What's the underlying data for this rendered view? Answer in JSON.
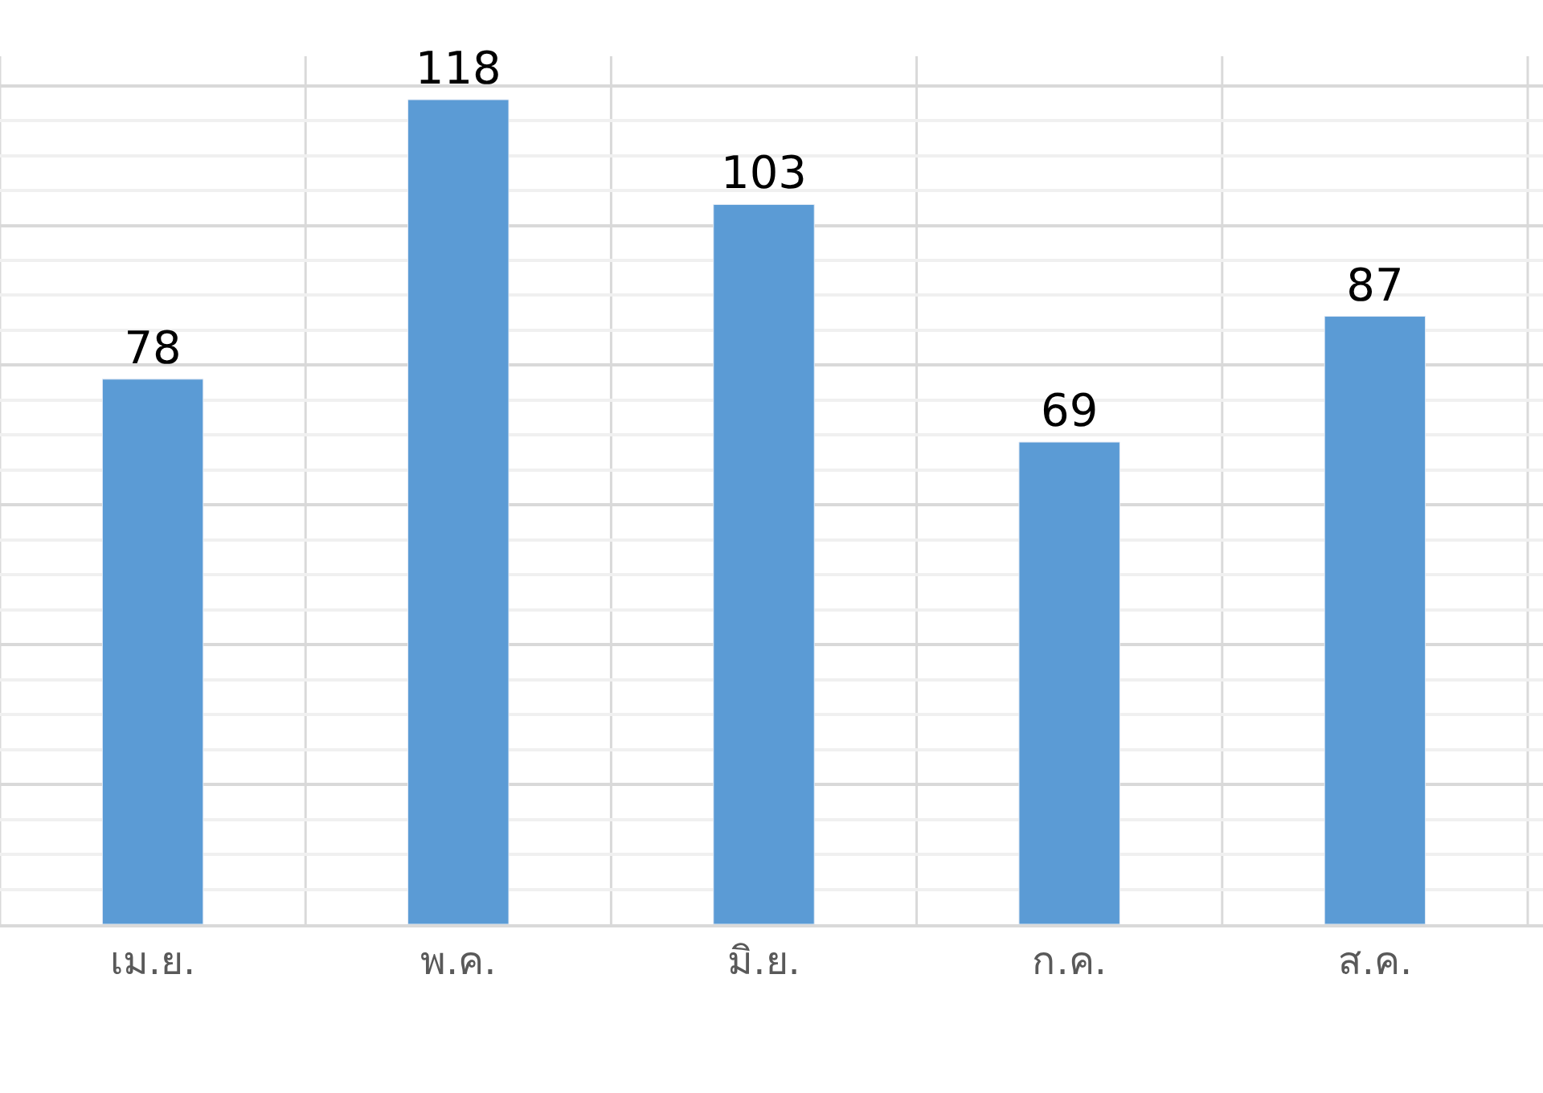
{
  "chart_data": {
    "type": "bar",
    "categories": [
      "เม.ย.",
      "พ.ค.",
      "มิ.ย.",
      "ก.ค.",
      "ส.ค."
    ],
    "values": [
      78,
      118,
      103,
      69,
      87
    ],
    "color": "#5b9bd5",
    "data_labels": true,
    "tick_labels": "x",
    "grid": true
  }
}
